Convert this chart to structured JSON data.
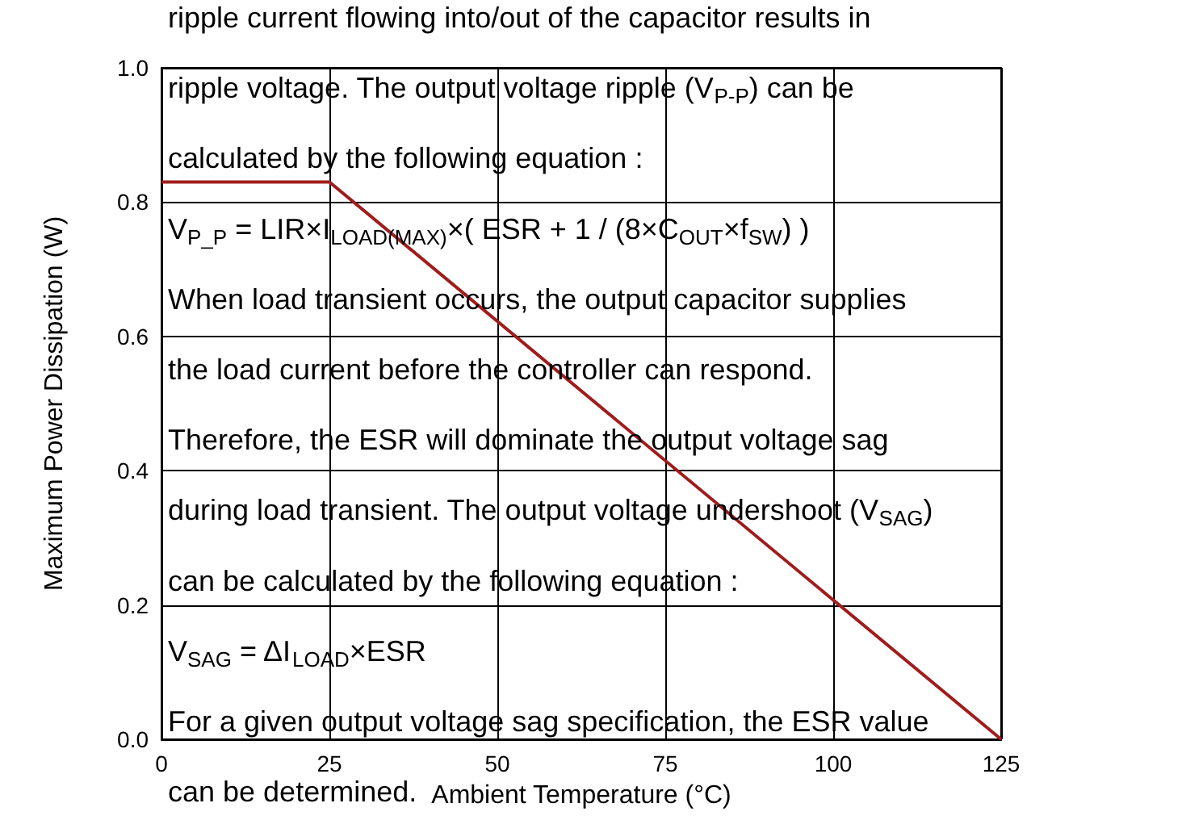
{
  "chart_data": {
    "type": "line",
    "xlabel": "Ambient Temperature (°C)",
    "ylabel": "Maximum Power Dissipation (W)",
    "x": [
      0,
      25,
      125
    ],
    "series": [
      {
        "color": "#a01c1c",
        "values": [
          0.83,
          0.83,
          0
        ]
      }
    ],
    "xlim": [
      0,
      125
    ],
    "xticks": [
      0,
      25,
      50,
      75,
      100,
      125
    ],
    "ylim": [
      0,
      1
    ],
    "yticks": [
      {
        "value": 0,
        "label": "0.0"
      },
      {
        "value": 0.2,
        "label": "0.2"
      },
      {
        "value": 0.4,
        "label": "0.4"
      },
      {
        "value": 0.6,
        "label": "0.6"
      },
      {
        "value": 0.8,
        "label": "0.8"
      },
      {
        "value": 1,
        "label": "1.0"
      }
    ],
    "grid": true,
    "annotations": [
      "ripple current flowing into/out of the capacitor results in",
      "ripple voltage. The output voltage ripple (V$_{P-P}$) can be",
      "calculated by the following equation :",
      "V$_{P_P}$ = LIR×I$_{LOAD(MAX)}$×( ESR + 1 / (8×C$_{OUT}$×f$_{SW}$) )",
      "When load transient occurs, the output capacitor supplies",
      "the load current before the controller can respond.",
      "Therefore, the ESR will dominate the output voltage sag",
      "during load transient. The output voltage undershoot (V$_{SAG}$)",
      "can be calculated by the following equation :",
      "V$_{SAG}$ = ΔI$_{LOAD}$×ESR",
      "For a given output voltage sag specification, the ESR value",
      "can be determined."
    ]
  }
}
